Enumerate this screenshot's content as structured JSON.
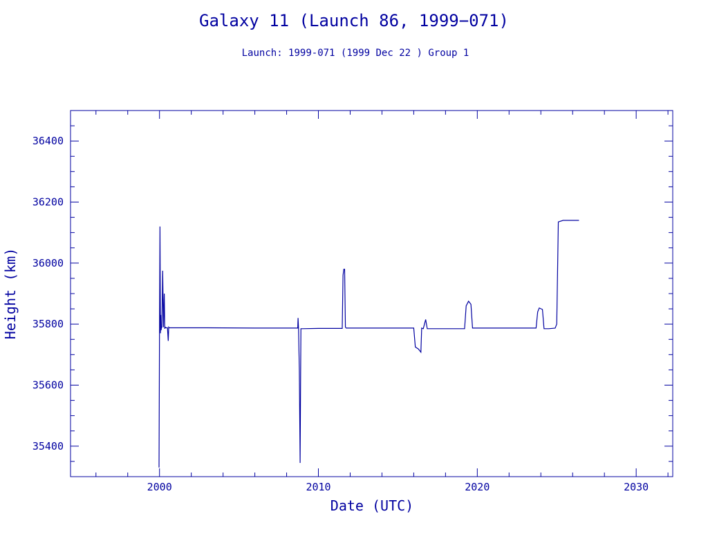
{
  "chart_data": {
    "type": "line",
    "title": "Galaxy 11 (Launch 86, 1999−071)",
    "subtitle": "Launch: 1999-071  (1999 Dec 22 )  Group 1",
    "xlabel": "Date (UTC)",
    "ylabel": "Height (km)",
    "xlim": [
      1994.4,
      2032.3
    ],
    "ylim": [
      35300,
      36500
    ],
    "x_ticks": [
      2000,
      2010,
      2020,
      2030
    ],
    "y_ticks": [
      35400,
      35600,
      35800,
      36000,
      36200,
      36400
    ],
    "grid": false,
    "line_color": "#0000a0",
    "series": [
      {
        "x": [
          1999.97,
          2000.0,
          2000.03,
          2000.06,
          2000.08,
          2000.1,
          2000.13,
          2000.15,
          2000.2,
          2000.25,
          2000.3,
          2000.33,
          2000.36,
          2000.4,
          2000.5,
          2000.55,
          2000.58,
          2000.61,
          2000.64,
          2000.7,
          2003.0,
          2006.0,
          2008.0,
          2008.7,
          2008.72,
          2008.75,
          2008.8,
          2008.85,
          2008.88,
          2008.9,
          2008.92,
          2008.95,
          2009.0,
          2010.0,
          2011.5,
          2011.55,
          2011.6,
          2011.65,
          2011.7,
          2011.75,
          2011.8,
          2012.0,
          2014.0,
          2016.0,
          2016.1,
          2016.3,
          2016.45,
          2016.5,
          2016.6,
          2016.75,
          2016.85,
          2017.0,
          2018.0,
          2019.2,
          2019.3,
          2019.45,
          2019.6,
          2019.7,
          2020.0,
          2022.0,
          2023.7,
          2023.8,
          2023.9,
          2024.1,
          2024.2,
          2024.5,
          2024.9,
          2025.0,
          2025.1,
          2025.4,
          2026.0,
          2026.4
        ],
        "y": [
          35330,
          35780,
          36120,
          35770,
          35830,
          35780,
          35790,
          35790,
          35975,
          35790,
          35900,
          35785,
          35790,
          35788,
          35788,
          35745,
          35790,
          35788,
          35788,
          35788,
          35788,
          35787,
          35787,
          35787,
          35820,
          35785,
          35650,
          35345,
          35620,
          35785,
          35785,
          35785,
          35785,
          35786,
          35786,
          35960,
          35980,
          35980,
          35790,
          35787,
          35787,
          35787,
          35787,
          35787,
          35725,
          35718,
          35708,
          35787,
          35785,
          35815,
          35785,
          35785,
          35785,
          35785,
          35860,
          35875,
          35865,
          35787,
          35787,
          35787,
          35787,
          35840,
          35853,
          35848,
          35785,
          35785,
          35787,
          35800,
          36135,
          36140,
          36140,
          36140
        ]
      }
    ]
  }
}
